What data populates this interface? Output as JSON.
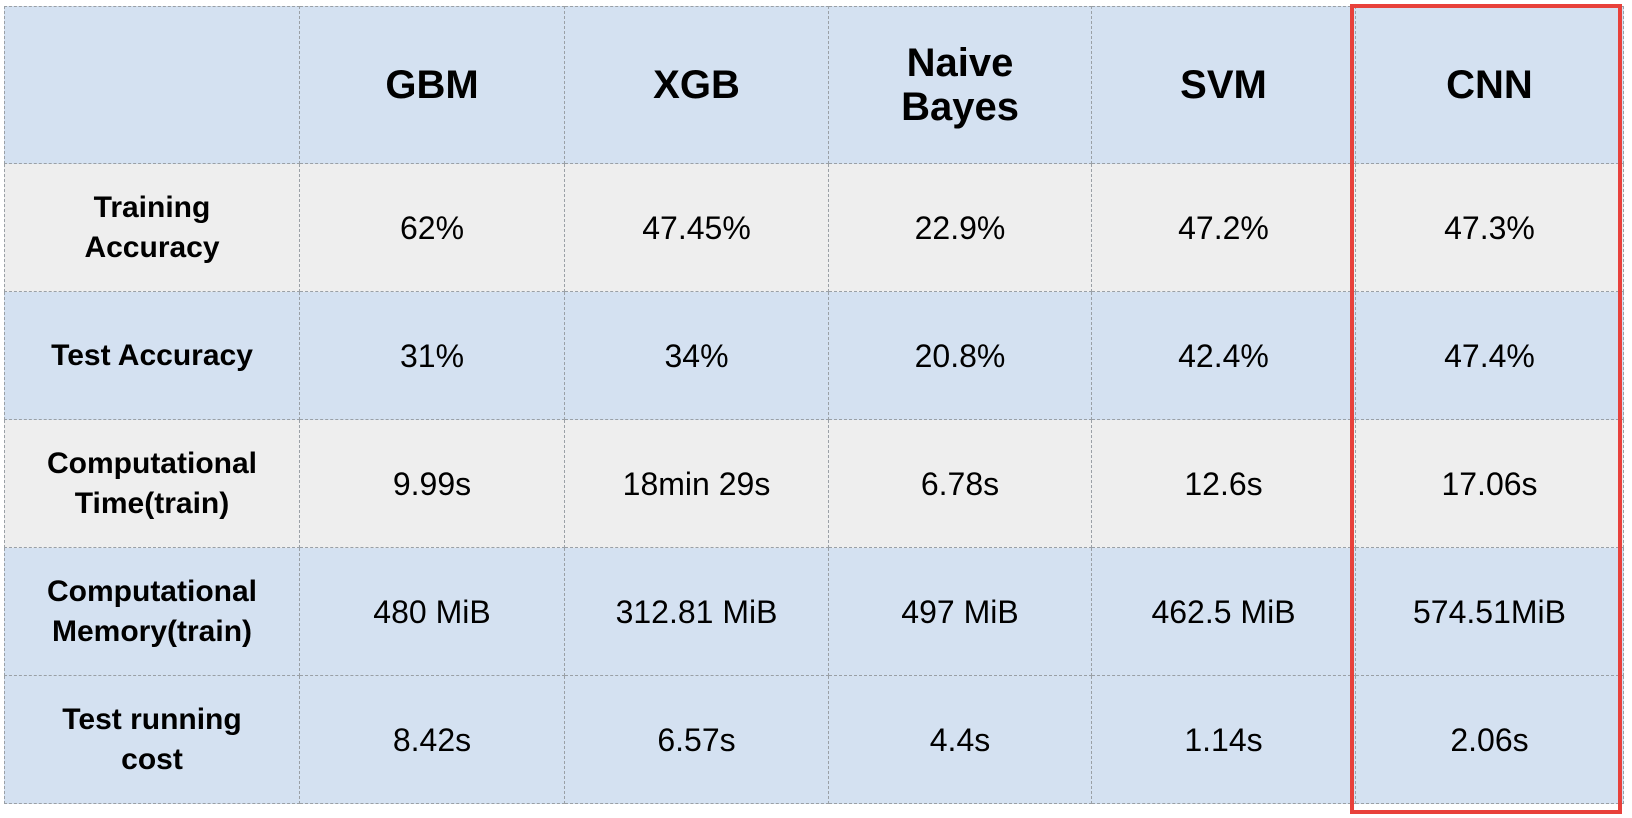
{
  "chart_data": {
    "type": "table",
    "columns": [
      "",
      "GBM",
      "XGB",
      "Naive\nBayes",
      "SVM",
      "CNN"
    ],
    "rows": [
      {
        "label": "Training\nAccuracy",
        "values": [
          "62%",
          "47.45%",
          "22.9%",
          "47.2%",
          "47.3%"
        ]
      },
      {
        "label": "Test Accuracy",
        "values": [
          "31%",
          "34%",
          "20.8%",
          "42.4%",
          "47.4%"
        ]
      },
      {
        "label": "Computational\nTime(train)",
        "values": [
          "9.99s",
          "18min 29s",
          "6.78s",
          "12.6s",
          "17.06s"
        ]
      },
      {
        "label": "Computational\nMemory(train)",
        "values": [
          "480 MiB",
          "312.81 MiB",
          "497 MiB",
          "462.5 MiB",
          "574.51MiB"
        ]
      },
      {
        "label": "Test running\ncost",
        "values": [
          "8.42s",
          "6.57s",
          "4.4s",
          "1.14s",
          "2.06s"
        ]
      }
    ],
    "highlighted_column": "CNN",
    "colors": {
      "header_bg": "#d4e1f1",
      "blue_row_bg": "#d4e1f1",
      "gray_row_bg": "#eeeeee",
      "highlight_border": "#e8413b",
      "grid_line": "#9aa0a6"
    }
  }
}
